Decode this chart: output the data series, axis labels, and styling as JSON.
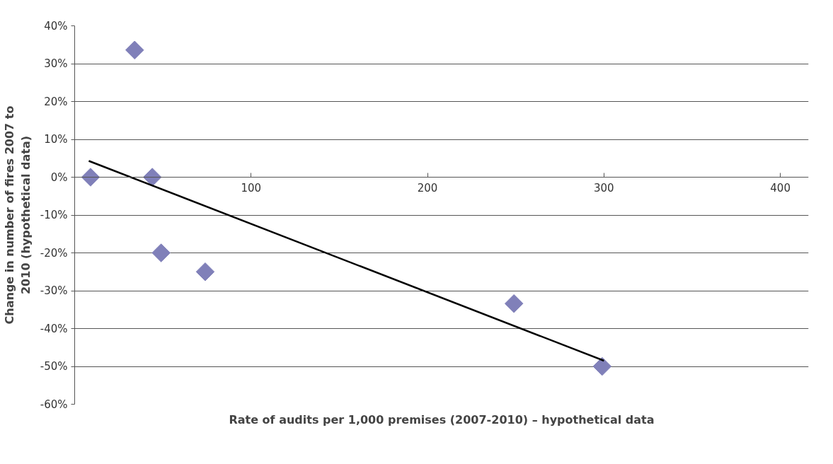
{
  "chart_data": {
    "type": "scatter",
    "xlabel": "Rate of audits per 1,000 premises (2007-2010) – hypothetical data",
    "ylabel": "Change in number of fires 2007 to 2010 (hypothetical data)",
    "series": [
      {
        "color": "#8080b9",
        "marker": "diamond",
        "x": [
          9,
          34,
          44,
          49,
          74,
          249,
          299
        ],
        "values": [
          0,
          33.6,
          0,
          -20,
          -25,
          -33.4,
          -50
        ]
      },
      {
        "type": "line",
        "color": "#000000",
        "line_style": "solid",
        "marker": "none",
        "x": [
          8,
          300
        ],
        "values": [
          4.3,
          -48.5
        ]
      }
    ],
    "xlim": [
      0,
      400
    ],
    "xticks": [
      100,
      200,
      300,
      400
    ],
    "ylim": [
      -60,
      40
    ],
    "yticks": [
      {
        "value": -60,
        "label": "-60%"
      },
      {
        "value": -50,
        "label": "-50%"
      },
      {
        "value": -40,
        "label": "-40%"
      },
      {
        "value": -30,
        "label": "-30%"
      },
      {
        "value": -20,
        "label": "-20%"
      },
      {
        "value": -10,
        "label": "-10%"
      },
      {
        "value": 0,
        "label": "0%"
      },
      {
        "value": 10,
        "label": "10%"
      },
      {
        "value": 20,
        "label": "20%"
      },
      {
        "value": 30,
        "label": "30%"
      },
      {
        "value": 40,
        "label": "40%"
      }
    ],
    "grid": "y"
  }
}
